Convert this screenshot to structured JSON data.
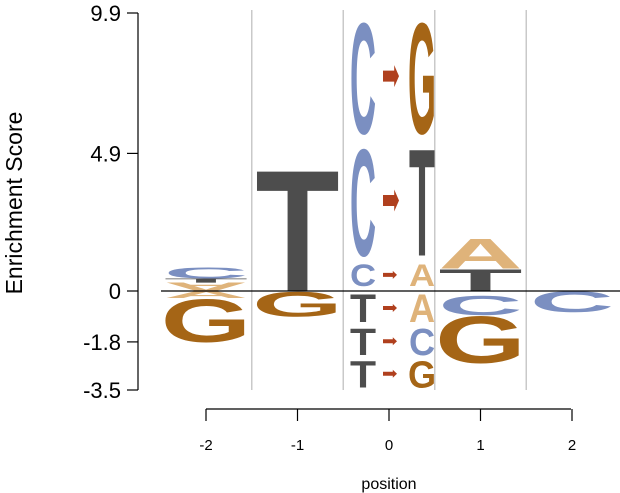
{
  "chart_data": {
    "type": "sequence-logo",
    "ylabel": "Enrichment Score",
    "xlabel": "position",
    "y_ticks": [
      "9.9",
      "4.9",
      "0",
      "-1.8",
      "-3.5"
    ],
    "y_tick_values": [
      9.9,
      4.9,
      0,
      -1.8,
      -3.5
    ],
    "x_ticks": [
      "-2",
      "-1",
      "0",
      "1",
      "2"
    ],
    "x_tick_values": [
      -2,
      -1,
      0,
      1,
      2
    ],
    "ylim": [
      -3.5,
      9.9
    ],
    "baseline": 0,
    "grid": "vertical separators between positions",
    "colors": {
      "A": "#dfb37a",
      "C": "#7b8fc1",
      "G": "#a56516",
      "T": "#4d4d4d",
      "arrow": "#b0401e"
    },
    "positions": [
      {
        "x": -2,
        "above": [
          {
            "letter": "A",
            "from": 0.0,
            "to": 0.3,
            "flipped": true
          },
          {
            "letter": "T",
            "from": 0.3,
            "to": 0.45
          },
          {
            "letter": "C",
            "from": 0.45,
            "to": 0.85
          }
        ],
        "below": [
          {
            "letter": "A",
            "from": 0.0,
            "to": -0.25
          },
          {
            "letter": "G",
            "from": -0.25,
            "to": -1.8
          }
        ]
      },
      {
        "x": -1,
        "above": [
          {
            "letter": "T",
            "from": 0.0,
            "to": 4.45
          }
        ],
        "below": [
          {
            "letter": "G",
            "from": 0.0,
            "to": -0.9
          }
        ]
      },
      {
        "x": 1,
        "above": [
          {
            "letter": "T",
            "from": 0.0,
            "to": 0.8
          },
          {
            "letter": "A",
            "from": 0.8,
            "to": 1.9
          }
        ],
        "below": [
          {
            "letter": "C",
            "from": -0.15,
            "to": -0.85
          },
          {
            "letter": "G",
            "from": -0.85,
            "to": -2.55
          }
        ]
      },
      {
        "x": 2,
        "above": [],
        "below": [
          {
            "letter": "C",
            "from": 0.0,
            "to": -0.75
          }
        ]
      }
    ],
    "substitutions": [
      {
        "from_letter": "C",
        "to_letter": "G",
        "from": 5.4,
        "to": 9.9,
        "direction": "up"
      },
      {
        "from_letter": "C",
        "to_letter": "T",
        "from": 1.05,
        "to": 5.4,
        "direction": "up"
      },
      {
        "from_letter": "C",
        "to_letter": "A",
        "from": 0.1,
        "to": 1.05,
        "direction": "up"
      },
      {
        "from_letter": "T",
        "to_letter": "A",
        "from": 0.0,
        "to": -1.2,
        "direction": "down"
      },
      {
        "from_letter": "T",
        "to_letter": "C",
        "from": -1.2,
        "to": -2.35,
        "direction": "down"
      },
      {
        "from_letter": "T",
        "to_letter": "G",
        "from": -2.35,
        "to": -3.5,
        "direction": "down"
      }
    ]
  }
}
